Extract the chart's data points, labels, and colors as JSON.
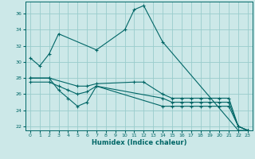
{
  "xlabel": "Humidex (Indice chaleur)",
  "xlim": [
    -0.5,
    23.5
  ],
  "ylim": [
    21.5,
    37.5
  ],
  "yticks": [
    22,
    24,
    26,
    28,
    30,
    32,
    34,
    36
  ],
  "xticks": [
    0,
    1,
    2,
    3,
    4,
    5,
    6,
    7,
    8,
    9,
    10,
    11,
    12,
    13,
    14,
    15,
    16,
    17,
    18,
    19,
    20,
    21,
    22,
    23
  ],
  "bg_color": "#cce8e8",
  "grid_color": "#99cccc",
  "line_color": "#006666",
  "lines": [
    {
      "x": [
        0,
        1,
        2,
        3,
        7,
        10,
        11,
        12,
        14,
        22,
        23
      ],
      "y": [
        30.5,
        29.5,
        31.0,
        33.5,
        31.5,
        34.0,
        36.5,
        37.0,
        32.5,
        21.5,
        21.5
      ]
    },
    {
      "x": [
        0,
        2,
        5,
        6,
        7,
        11,
        12,
        14,
        15,
        16,
        17,
        18,
        19,
        20,
        21,
        22,
        23
      ],
      "y": [
        28.0,
        28.0,
        27.0,
        27.0,
        27.3,
        27.5,
        27.5,
        26.0,
        25.5,
        25.5,
        25.5,
        25.5,
        25.5,
        25.5,
        25.5,
        22.0,
        21.5
      ]
    },
    {
      "x": [
        0,
        2,
        3,
        4,
        5,
        6,
        7,
        14,
        15,
        16,
        17,
        18,
        19,
        20,
        21,
        22,
        23
      ],
      "y": [
        27.5,
        27.5,
        27.0,
        26.5,
        26.0,
        26.3,
        27.0,
        25.5,
        25.0,
        25.0,
        25.0,
        25.0,
        25.0,
        25.0,
        25.0,
        22.0,
        21.5
      ]
    },
    {
      "x": [
        0,
        2,
        3,
        4,
        5,
        6,
        7,
        14,
        15,
        16,
        17,
        18,
        19,
        20,
        21,
        22,
        23
      ],
      "y": [
        28.0,
        28.0,
        26.5,
        25.5,
        24.5,
        25.0,
        27.0,
        24.5,
        24.5,
        24.5,
        24.5,
        24.5,
        24.5,
        24.5,
        24.5,
        22.0,
        21.5
      ]
    }
  ]
}
